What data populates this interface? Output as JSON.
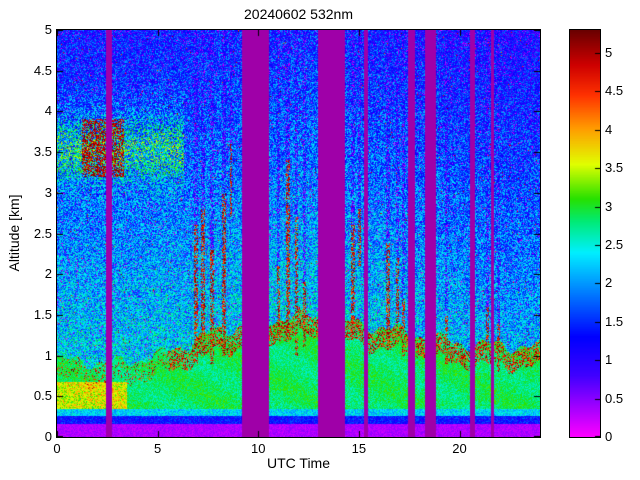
{
  "chart_data": {
    "type": "heatmap",
    "title": "20240602 532nm",
    "xlabel": "UTC Time",
    "ylabel": "Altitude [km]",
    "x_range": [
      0,
      24
    ],
    "y_range": [
      0,
      5
    ],
    "x_ticks": [
      0,
      5,
      10,
      15,
      20
    ],
    "x_tick_labels": [
      "0",
      "5",
      "10",
      "15",
      "20"
    ],
    "y_ticks": [
      0,
      0.5,
      1,
      1.5,
      2,
      2.5,
      3,
      3.5,
      4,
      4.5,
      5
    ],
    "y_tick_labels": [
      "0",
      "0.5",
      "1",
      "1.5",
      "2",
      "2.5",
      "3",
      "3.5",
      "4",
      "4.5",
      "5"
    ],
    "colorbar": {
      "min": 0,
      "max": 5.3,
      "ticks": [
        0,
        0.5,
        1,
        1.5,
        2,
        2.5,
        3,
        3.5,
        4,
        4.5,
        5
      ],
      "tick_labels": [
        "0",
        "0.5",
        "1",
        "1.5",
        "2",
        "2.5",
        "3",
        "3.5",
        "4",
        "4.5",
        "5"
      ]
    },
    "colormap_stops": [
      [
        0.0,
        255,
        0,
        255
      ],
      [
        0.8,
        64,
        0,
        255
      ],
      [
        1.3,
        0,
        0,
        255
      ],
      [
        1.9,
        0,
        130,
        255
      ],
      [
        2.4,
        0,
        240,
        255
      ],
      [
        2.8,
        0,
        235,
        120
      ],
      [
        3.1,
        40,
        225,
        0
      ],
      [
        3.55,
        225,
        255,
        0
      ],
      [
        4.0,
        255,
        160,
        0
      ],
      [
        4.45,
        255,
        50,
        0
      ],
      [
        4.85,
        205,
        0,
        0
      ],
      [
        5.3,
        105,
        0,
        0
      ]
    ],
    "gaps": [
      [
        2.45,
        2.72
      ],
      [
        9.2,
        10.55
      ],
      [
        12.95,
        14.3
      ],
      [
        15.25,
        15.45
      ],
      [
        17.45,
        17.8
      ],
      [
        18.3,
        18.85
      ],
      [
        20.5,
        20.75
      ],
      [
        21.55,
        21.72
      ]
    ],
    "gap_color": "#9f00a8",
    "boundary_layer": {
      "t": [
        0,
        3,
        5,
        8,
        12,
        16,
        20,
        24
      ],
      "h": [
        0.95,
        0.9,
        1.0,
        1.3,
        1.5,
        1.35,
        1.15,
        1.1
      ],
      "value": 2.85
    },
    "low_yellow_layer": {
      "t_end": 3.5,
      "z_min": 0.28,
      "z_max": 0.68,
      "boost": 0.95
    },
    "elevated_layer": {
      "t_end": 6.3,
      "z_center": 3.55,
      "z_sigma": 0.28,
      "boost": 1.15,
      "blob_t": [
        1.25,
        3.35
      ]
    },
    "clouds": [
      {
        "t": 6.9,
        "w": 0.1,
        "z": [
          0.9,
          2.6
        ]
      },
      {
        "t": 7.25,
        "w": 0.08,
        "z": [
          1.0,
          2.8
        ]
      },
      {
        "t": 7.7,
        "w": 0.1,
        "z": [
          0.9,
          2.3
        ]
      },
      {
        "t": 8.3,
        "w": 0.09,
        "z": [
          1.0,
          3.0
        ]
      },
      {
        "t": 8.65,
        "w": 0.07,
        "z": [
          2.7,
          3.6
        ]
      },
      {
        "t": 11.0,
        "w": 0.09,
        "z": [
          1.2,
          2.1
        ]
      },
      {
        "t": 11.5,
        "w": 0.1,
        "z": [
          1.2,
          3.4
        ]
      },
      {
        "t": 11.9,
        "w": 0.09,
        "z": [
          1.0,
          2.7
        ]
      },
      {
        "t": 12.3,
        "w": 0.08,
        "z": [
          1.1,
          1.9
        ]
      },
      {
        "t": 14.7,
        "w": 0.09,
        "z": [
          1.2,
          2.6
        ]
      },
      {
        "t": 15.05,
        "w": 0.07,
        "z": [
          2.1,
          2.8
        ]
      },
      {
        "t": 16.45,
        "w": 0.09,
        "z": [
          1.2,
          2.4
        ]
      },
      {
        "t": 16.9,
        "w": 0.08,
        "z": [
          1.4,
          2.2
        ]
      },
      {
        "t": 17.2,
        "w": 0.07,
        "z": [
          1.0,
          1.7
        ]
      },
      {
        "t": 19.35,
        "w": 0.08,
        "z": [
          0.9,
          1.5
        ]
      },
      {
        "t": 21.4,
        "w": 0.08,
        "z": [
          0.9,
          1.6
        ]
      },
      {
        "t": 21.95,
        "w": 0.07,
        "z": [
          0.8,
          1.4
        ]
      }
    ],
    "noise": {
      "seed": 20240602,
      "speckle": 1.3,
      "dropout_base": 0.05,
      "dropout_alt_gain": 0.06,
      "red_speck_p": 0.004
    }
  }
}
